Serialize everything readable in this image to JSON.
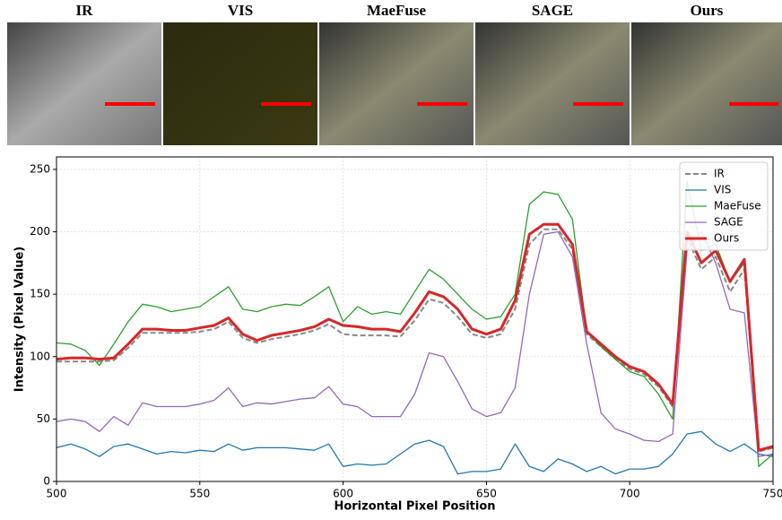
{
  "images": {
    "titles": [
      "IR",
      "VIS",
      "MaeFuse",
      "SAGE",
      "Ours"
    ]
  },
  "chart_data": {
    "type": "line",
    "x_label": "Horizontal Pixel Position",
    "y_label": "Intensity (Pixel Value)",
    "x": [
      500,
      505,
      510,
      515,
      520,
      525,
      530,
      535,
      540,
      545,
      550,
      555,
      560,
      565,
      570,
      575,
      580,
      585,
      590,
      595,
      600,
      605,
      610,
      615,
      620,
      625,
      630,
      635,
      640,
      645,
      650,
      655,
      660,
      665,
      670,
      675,
      680,
      685,
      690,
      695,
      700,
      705,
      710,
      715,
      720,
      725,
      730,
      735,
      740,
      745,
      750
    ],
    "series": [
      {
        "name": "IR",
        "color": "#888888",
        "linestyle": "dashed",
        "linewidth": 2,
        "values": [
          96,
          96,
          96,
          96,
          97,
          107,
          119,
          119,
          119,
          119,
          120,
          122,
          128,
          115,
          111,
          114,
          116,
          118,
          121,
          126,
          118,
          117,
          117,
          117,
          116,
          129,
          146,
          143,
          132,
          118,
          115,
          118,
          138,
          190,
          202,
          202,
          186,
          118,
          108,
          98,
          90,
          86,
          76,
          60,
          195,
          170,
          180,
          152,
          170,
          24,
          27
        ]
      },
      {
        "name": "VIS",
        "color": "#1f77b4",
        "linestyle": "solid",
        "linewidth": 1.3,
        "values": [
          27,
          30,
          26,
          20,
          28,
          30,
          26,
          22,
          24,
          23,
          25,
          24,
          30,
          25,
          27,
          27,
          27,
          26,
          25,
          30,
          12,
          14,
          13,
          14,
          22,
          30,
          33,
          28,
          6,
          8,
          8,
          10,
          30,
          12,
          8,
          18,
          14,
          8,
          12,
          6,
          10,
          10,
          12,
          22,
          38,
          40,
          30,
          24,
          30,
          22,
          20
        ]
      },
      {
        "name": "MaeFuse",
        "color": "#2ca02c",
        "linestyle": "solid",
        "linewidth": 1.3,
        "values": [
          111,
          110,
          105,
          93,
          110,
          128,
          142,
          140,
          136,
          138,
          140,
          148,
          156,
          138,
          136,
          140,
          142,
          141,
          148,
          156,
          128,
          140,
          134,
          136,
          134,
          152,
          170,
          162,
          150,
          138,
          130,
          132,
          150,
          222,
          232,
          230,
          210,
          120,
          108,
          98,
          88,
          84,
          70,
          50,
          240,
          185,
          190,
          160,
          175,
          12,
          22
        ]
      },
      {
        "name": "SAGE",
        "color": "#9467bd",
        "linestyle": "solid",
        "linewidth": 1.3,
        "values": [
          48,
          50,
          48,
          40,
          52,
          45,
          63,
          60,
          60,
          60,
          62,
          65,
          75,
          60,
          63,
          62,
          64,
          66,
          67,
          76,
          62,
          60,
          52,
          52,
          52,
          70,
          103,
          100,
          80,
          58,
          52,
          55,
          75,
          150,
          198,
          200,
          180,
          110,
          55,
          42,
          38,
          33,
          32,
          38,
          185,
          200,
          175,
          138,
          135,
          20,
          22
        ]
      },
      {
        "name": "Ours",
        "color": "#d62728",
        "linestyle": "solid",
        "linewidth": 3,
        "values": [
          98,
          99,
          99,
          98,
          99,
          110,
          122,
          122,
          121,
          121,
          123,
          125,
          131,
          118,
          113,
          117,
          119,
          121,
          124,
          130,
          125,
          124,
          122,
          122,
          120,
          135,
          152,
          148,
          138,
          122,
          118,
          122,
          145,
          198,
          206,
          206,
          190,
          120,
          110,
          100,
          92,
          88,
          78,
          62,
          200,
          175,
          185,
          160,
          178,
          25,
          28
        ]
      }
    ],
    "xlim": [
      500,
      750
    ],
    "xticks": [
      500,
      550,
      600,
      650,
      700,
      750
    ],
    "ylim": [
      0,
      260
    ],
    "yticks": [
      0,
      50,
      100,
      150,
      200,
      250
    ],
    "grid": true,
    "legend": "upper right"
  }
}
